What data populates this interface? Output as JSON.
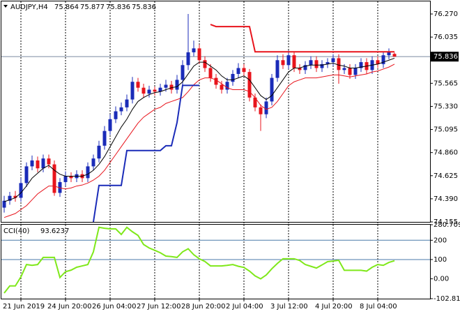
{
  "chart_data": {
    "type": "candlestick",
    "symbol": "AUDJPY,H4",
    "up_color": "#1a2bb8",
    "down_color": "#e8141c",
    "categories": [
      null,
      null,
      null,
      "21 Jun 2019",
      null,
      null,
      null,
      null,
      null,
      null,
      null,
      "24 Jun 20:00",
      null,
      null,
      null,
      null,
      null,
      null,
      null,
      "26 Jun 04:00",
      null,
      null,
      null,
      null,
      null,
      null,
      null,
      "27 Jun 12:00",
      null,
      null,
      null,
      null,
      null,
      null,
      null,
      "28 Jun 20:00",
      null,
      null,
      null,
      null,
      null,
      null,
      null,
      "2 Jul 04:00",
      null,
      null,
      null,
      null,
      null,
      null,
      null,
      "3 Jul 12:00",
      null,
      null,
      null,
      null,
      null,
      null,
      null,
      "4 Jul 20:00",
      null,
      null,
      null,
      null,
      null,
      null,
      null,
      "8 Jul 04:00",
      null,
      null,
      null
    ],
    "open": [
      74.3,
      74.37,
      74.42,
      74.4,
      74.55,
      74.72,
      74.78,
      74.7,
      74.8,
      74.74,
      74.45,
      74.56,
      74.62,
      74.6,
      74.64,
      74.6,
      74.72,
      74.8,
      74.93,
      75.08,
      75.2,
      75.28,
      75.32,
      75.4,
      75.58,
      75.52,
      75.46,
      75.5,
      75.48,
      75.52,
      75.55,
      75.5,
      75.6,
      75.75,
      75.88,
      75.92,
      75.8,
      75.72,
      75.62,
      75.55,
      75.5,
      75.58,
      75.66,
      75.72,
      75.68,
      75.42,
      75.32,
      75.25,
      75.38,
      75.62,
      75.8,
      75.75,
      75.85,
      75.72,
      75.7,
      75.75,
      75.8,
      75.72,
      75.76,
      75.78,
      75.82,
      75.7,
      75.72,
      75.65,
      75.72,
      75.78,
      75.7,
      75.8,
      75.76,
      75.85,
      75.864
    ],
    "high": [
      74.42,
      74.46,
      74.47,
      74.6,
      74.76,
      74.83,
      74.82,
      74.84,
      74.84,
      74.78,
      74.6,
      74.67,
      74.66,
      74.68,
      74.68,
      74.76,
      74.84,
      74.98,
      75.13,
      75.25,
      75.33,
      75.37,
      75.45,
      75.63,
      75.62,
      75.56,
      75.54,
      75.53,
      75.56,
      75.6,
      75.59,
      75.65,
      75.8,
      76.27,
      76.0,
      75.96,
      75.84,
      75.76,
      75.66,
      75.59,
      75.62,
      75.7,
      75.77,
      75.76,
      75.71,
      75.46,
      75.35,
      75.42,
      75.66,
      75.85,
      75.86,
      75.9,
      75.89,
      75.76,
      75.79,
      75.84,
      75.84,
      75.8,
      75.82,
      75.86,
      75.86,
      75.76,
      75.76,
      75.76,
      75.82,
      75.82,
      75.84,
      75.84,
      75.89,
      75.92,
      75.877
    ],
    "low": [
      74.25,
      74.33,
      74.36,
      74.36,
      74.51,
      74.68,
      74.66,
      74.66,
      74.7,
      74.42,
      74.41,
      74.52,
      74.56,
      74.56,
      74.56,
      74.56,
      74.68,
      74.76,
      74.89,
      75.04,
      75.16,
      75.24,
      75.28,
      75.36,
      75.48,
      75.42,
      75.42,
      75.44,
      75.44,
      75.48,
      75.46,
      75.46,
      75.55,
      75.7,
      75.84,
      75.76,
      75.68,
      75.58,
      75.51,
      75.46,
      75.46,
      75.54,
      75.62,
      75.64,
      75.38,
      75.28,
      75.08,
      75.21,
      75.34,
      75.58,
      75.71,
      75.71,
      75.68,
      75.66,
      75.66,
      75.71,
      75.68,
      75.68,
      75.72,
      75.74,
      75.56,
      75.66,
      75.61,
      75.61,
      75.68,
      75.66,
      75.66,
      75.72,
      75.72,
      75.81,
      75.836
    ],
    "close": [
      74.37,
      74.42,
      74.4,
      74.55,
      74.72,
      74.78,
      74.7,
      74.8,
      74.74,
      74.45,
      74.56,
      74.62,
      74.6,
      74.64,
      74.6,
      74.72,
      74.8,
      74.93,
      75.08,
      75.2,
      75.28,
      75.32,
      75.4,
      75.58,
      75.52,
      75.46,
      75.5,
      75.48,
      75.52,
      75.55,
      75.5,
      75.6,
      75.75,
      75.88,
      75.92,
      75.8,
      75.72,
      75.62,
      75.55,
      75.5,
      75.58,
      75.66,
      75.72,
      75.68,
      75.42,
      75.32,
      75.25,
      75.38,
      75.62,
      75.8,
      75.75,
      75.85,
      75.72,
      75.7,
      75.75,
      75.8,
      75.72,
      75.76,
      75.78,
      75.82,
      75.7,
      75.72,
      75.65,
      75.72,
      75.78,
      75.7,
      75.8,
      75.76,
      75.85,
      75.88,
      75.836
    ],
    "series": [
      {
        "color": "#000000",
        "values": [
          74.36,
          74.38,
          74.4,
          74.45,
          74.52,
          74.6,
          74.65,
          74.7,
          74.73,
          74.68,
          74.64,
          74.62,
          74.62,
          74.62,
          74.62,
          74.64,
          74.68,
          74.74,
          74.82,
          74.92,
          75.02,
          75.12,
          75.2,
          75.3,
          75.38,
          75.42,
          75.45,
          75.47,
          75.48,
          75.5,
          75.52,
          75.53,
          75.58,
          75.66,
          75.74,
          75.78,
          75.78,
          75.74,
          75.7,
          75.64,
          75.6,
          75.6,
          75.62,
          75.64,
          75.6,
          75.52,
          75.44,
          75.4,
          75.44,
          75.52,
          75.6,
          75.68,
          75.72,
          75.72,
          75.74,
          75.75,
          75.75,
          75.75,
          75.76,
          75.77,
          75.75,
          75.74,
          75.72,
          75.72,
          75.73,
          75.74,
          75.75,
          75.76,
          75.78,
          75.8,
          75.82
        ]
      },
      {
        "color": "#e8141c",
        "values": [
          74.2,
          74.22,
          74.24,
          74.28,
          74.32,
          74.38,
          74.44,
          74.48,
          74.52,
          74.52,
          74.5,
          74.49,
          74.5,
          74.52,
          74.53,
          74.55,
          74.58,
          74.62,
          74.68,
          74.76,
          74.84,
          74.92,
          75.0,
          75.08,
          75.16,
          75.22,
          75.26,
          75.3,
          75.32,
          75.36,
          75.38,
          75.4,
          75.42,
          75.48,
          75.55,
          75.6,
          75.62,
          75.62,
          75.6,
          75.56,
          75.52,
          75.5,
          75.5,
          75.5,
          75.48,
          75.42,
          75.34,
          75.3,
          75.32,
          75.38,
          75.46,
          75.54,
          75.58,
          75.6,
          75.62,
          75.62,
          75.62,
          75.63,
          75.64,
          75.65,
          75.65,
          75.64,
          75.63,
          75.64,
          75.65,
          75.66,
          75.68,
          75.69,
          75.71,
          75.73,
          75.76
        ]
      },
      {
        "color": "#1a2bb8",
        "width": 2,
        "values": [
          null,
          null,
          null,
          null,
          null,
          null,
          null,
          null,
          null,
          null,
          null,
          null,
          null,
          null,
          null,
          null,
          74.155,
          74.526,
          74.526,
          74.526,
          74.526,
          74.526,
          74.881,
          74.881,
          74.881,
          74.881,
          74.881,
          74.881,
          74.881,
          74.93,
          74.93,
          75.166,
          75.544,
          75.544,
          75.544,
          75.544,
          null,
          null,
          null,
          null,
          null,
          null,
          null,
          null,
          null,
          null,
          null,
          null,
          null,
          null,
          null,
          null,
          null,
          null,
          null,
          null,
          null,
          null,
          null,
          null,
          null,
          null,
          null,
          null,
          null,
          null,
          null,
          null,
          null,
          null,
          null
        ]
      },
      {
        "color": "#e8141c",
        "width": 2,
        "values": [
          null,
          null,
          null,
          null,
          null,
          null,
          null,
          null,
          null,
          null,
          null,
          null,
          null,
          null,
          null,
          null,
          null,
          null,
          null,
          null,
          null,
          null,
          null,
          null,
          null,
          null,
          null,
          null,
          null,
          null,
          null,
          null,
          null,
          null,
          null,
          null,
          null,
          76.163,
          76.142,
          76.142,
          76.142,
          76.142,
          76.142,
          76.142,
          76.142,
          75.885,
          75.885,
          75.885,
          75.885,
          75.885,
          75.885,
          75.885,
          75.885,
          75.885,
          75.885,
          75.885,
          75.885,
          75.885,
          75.885,
          75.885,
          75.885,
          75.885,
          75.885,
          75.885,
          75.885,
          75.885,
          75.885,
          75.885,
          75.885,
          75.885,
          75.885
        ]
      }
    ],
    "ylim": [
      74.155,
      76.398
    ],
    "yticks": [
      {
        "value": 76.27,
        "label": "76.270"
      },
      76.035,
      75.565,
      {
        "value": 75.33,
        "label": "75.330"
      },
      75.095,
      {
        "value": 74.86,
        "label": "74.860"
      },
      74.625,
      {
        "value": 74.39,
        "label": "74.390"
      },
      74.155
    ],
    "indicator": {
      "name": "CCI(40)",
      "color": "#7fe81a",
      "values": [
        -74,
        -37,
        -37,
        10,
        74,
        70,
        74,
        111,
        111,
        111,
        7,
        37,
        45,
        60,
        67,
        74,
        140,
        267,
        262,
        259,
        259,
        230,
        267,
        244,
        225,
        178,
        160,
        148,
        135,
        118,
        115,
        111,
        140,
        156,
        125,
        104,
        90,
        67,
        67,
        67,
        70,
        74,
        65,
        59,
        40,
        15,
        0,
        20,
        52,
        80,
        104,
        104,
        104,
        95,
        74,
        65,
        56,
        72,
        89,
        92,
        96,
        44,
        44,
        44,
        44,
        40,
        60,
        74,
        70,
        85,
        93.6237
      ],
      "ylim": [
        -102.814,
        280.7094
      ],
      "yticks": [
        280.7094,
        200,
        100,
        {
          "value": 0,
          "label": "0.00"
        },
        -102.814
      ],
      "levels": [
        200,
        100
      ]
    }
  }
}
